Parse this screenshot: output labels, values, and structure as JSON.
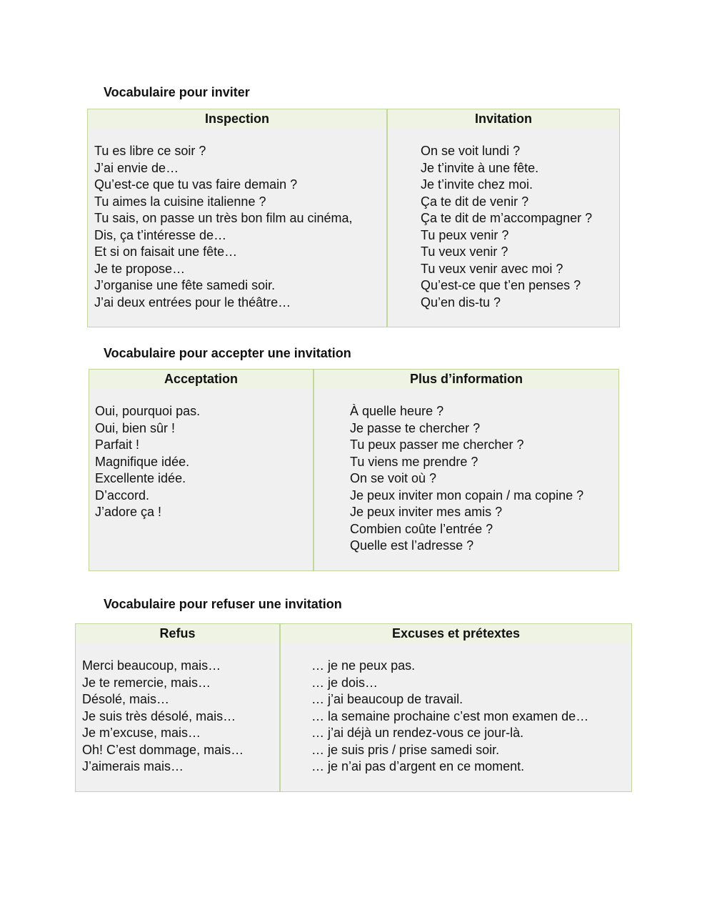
{
  "sections": [
    {
      "title": "Vocabulaire pour inviter",
      "left": {
        "header": "Inspection",
        "items": [
          "Tu es libre ce soir ?",
          "J’ai envie de…",
          "Qu’est-ce que tu vas faire demain ?",
          "Tu aimes la cuisine italienne ?",
          "Tu sais, on passe un très bon film au cinéma,",
          "Dis, ça t’intéresse de…",
          "Et si on faisait une fête…",
          "Je te propose…",
          "J’organise une fête samedi soir.",
          "J’ai deux entrées pour le théâtre…"
        ]
      },
      "right": {
        "header": "Invitation",
        "items": [
          "On se voit lundi ?",
          "Je t’invite à une fête.",
          "Je t’invite chez moi.",
          "Ça te dit de venir ?",
          "Ça te dit de m’accompagner ?",
          "Tu peux venir ?",
          "Tu veux venir ?",
          "Tu veux venir avec moi ?",
          "Qu’est-ce que t’en penses ?",
          "Qu’en dis-tu ?"
        ]
      }
    },
    {
      "title": "Vocabulaire pour accepter une invitation",
      "left": {
        "header": "Acceptation",
        "items": [
          "Oui, pourquoi pas.",
          "Oui, bien sûr !",
          "Parfait !",
          "Magnifique idée.",
          "Excellente idée.",
          "D’accord.",
          "J’adore ça !"
        ]
      },
      "right": {
        "header": "Plus d’information",
        "items": [
          "À quelle heure ?",
          "Je passe te chercher ?",
          "Tu peux passer me chercher ?",
          "Tu viens me prendre ?",
          "On se voit où ?",
          "Je peux inviter mon copain / ma copine ?",
          "Je peux inviter mes amis ?",
          "Combien coûte l’entrée ?",
          "Quelle est l’adresse ?"
        ]
      }
    },
    {
      "title": "Vocabulaire pour refuser une invitation",
      "left": {
        "header": "Refus",
        "items": [
          "Merci beaucoup, mais…",
          "Je te remercie, mais…",
          "Désolé, mais…",
          "Je suis très désolé, mais…",
          "Je m’excuse, mais…",
          "Oh! C’est dommage, mais…",
          "J’aimerais mais…"
        ]
      },
      "right": {
        "header": "Excuses et prétextes",
        "items": [
          "… je ne peux pas.",
          "… je dois…",
          "… j’ai beaucoup de travail.",
          "… la semaine prochaine c’est mon examen de…",
          "… j’ai déjà un rendez-vous ce jour-là.",
          "… je suis pris / prise samedi soir.",
          "… je n’ai pas d’argent en ce moment."
        ]
      }
    }
  ]
}
